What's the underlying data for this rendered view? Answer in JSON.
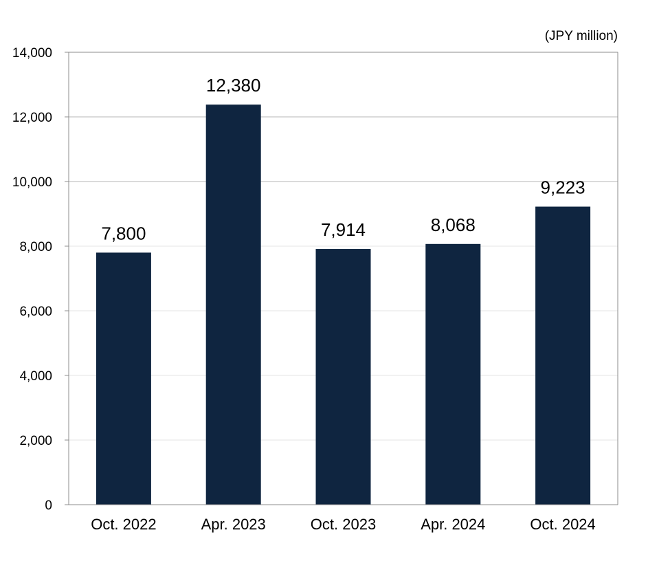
{
  "chart_data": {
    "type": "bar",
    "unit_label": "(JPY million)",
    "categories": [
      "Oct. 2022",
      "Apr. 2023",
      "Oct. 2023",
      "Apr. 2024",
      "Oct. 2024"
    ],
    "values": [
      7800,
      12380,
      7914,
      8068,
      9223
    ],
    "data_labels": [
      "7,800",
      "12,380",
      "7,914",
      "8,068",
      "9,223"
    ],
    "ylim": [
      0,
      14000
    ],
    "yticks": [
      0,
      2000,
      4000,
      6000,
      8000,
      10000,
      12000,
      14000
    ],
    "ytick_labels": [
      "0",
      "2,000",
      "4,000",
      "6,000",
      "8,000",
      "10,000",
      "12,000",
      "14,000"
    ],
    "grid": true,
    "legend": "none",
    "colors": {
      "bar": "#0f2540",
      "grid_major": "#b7b7b7",
      "grid_minor": "#e6e6e6",
      "axis": "#8c8c8c"
    }
  }
}
